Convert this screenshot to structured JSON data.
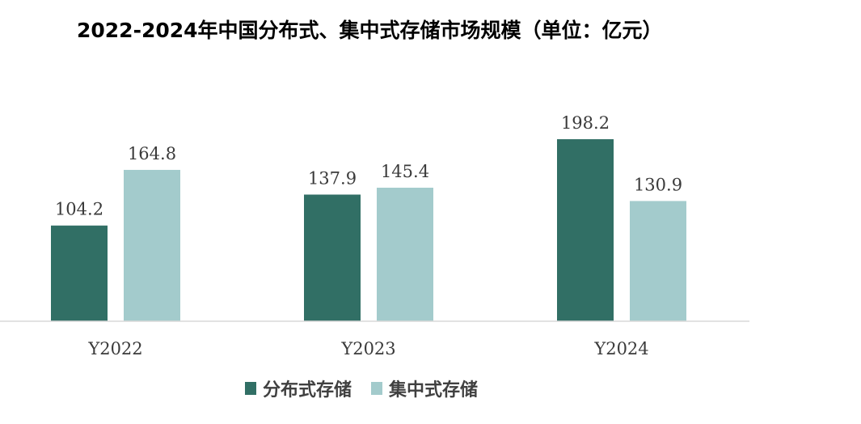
{
  "chart_data": {
    "type": "bar",
    "title": "2022-2024年中国分布式、集中式存储市场规模（单位：亿元）",
    "categories": [
      "Y2022",
      "Y2023",
      "Y2024"
    ],
    "series": [
      {
        "name": "分布式存储",
        "values": [
          104.2,
          137.9,
          198.2
        ],
        "color": "#316F65"
      },
      {
        "name": "集中式存储",
        "values": [
          164.8,
          145.4,
          130.9
        ],
        "color": "#A3CBCC"
      }
    ],
    "value_labels": {
      "分布式存储": [
        "104.2",
        "137.9",
        "198.2"
      ],
      "集中式存储": [
        "164.8",
        "145.4",
        "130.9"
      ]
    },
    "ylim": [
      0,
      230
    ],
    "grid": false,
    "legend_position": "bottom"
  }
}
